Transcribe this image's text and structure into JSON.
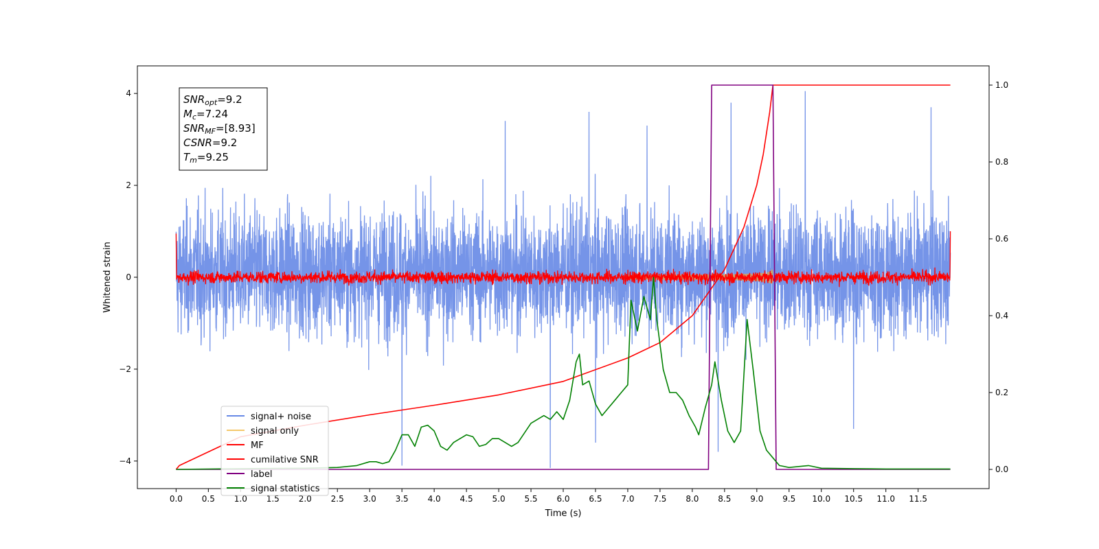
{
  "chart_data": {
    "type": "line",
    "xlabel": "Time (s)",
    "ylabel": "Whitened strain",
    "xlim": [
      -0.6,
      12.6
    ],
    "ylim": [
      -4.6,
      4.6
    ],
    "y2lim": [
      -0.05,
      1.05
    ],
    "x_ticks": [
      0.0,
      0.5,
      1.0,
      1.5,
      2.0,
      2.5,
      3.0,
      3.5,
      4.0,
      4.5,
      5.0,
      5.5,
      6.0,
      6.5,
      7.0,
      7.5,
      8.0,
      8.5,
      9.0,
      9.5,
      10.0,
      10.5,
      11.0,
      11.5
    ],
    "x_tick_labels": [
      "0.0",
      "0.5",
      "1.0",
      "1.5",
      "2.0",
      "2.5",
      "3.0",
      "3.5",
      "4.0",
      "4.5",
      "5.0",
      "5.5",
      "6.0",
      "6.5",
      "7.0",
      "7.5",
      "8.0",
      "8.5",
      "9.0",
      "9.5",
      "10.0",
      "10.5",
      "11.0",
      "11.5"
    ],
    "y_ticks": [
      -4,
      -2,
      0,
      2,
      4
    ],
    "y_tick_labels": [
      "−4",
      "−2",
      "0",
      "2",
      "4"
    ],
    "y2_ticks": [
      0.0,
      0.2,
      0.4,
      0.6,
      0.8,
      1.0
    ],
    "y2_tick_labels": [
      "0.0",
      "0.2",
      "0.4",
      "0.6",
      "0.8",
      "1.0"
    ],
    "legend_position": "lower-left",
    "legend": [
      {
        "label": "signal+ noise",
        "color": "#6688e6"
      },
      {
        "label": "signal only",
        "color": "#f5c86a"
      },
      {
        "label": "MF",
        "color": "#ff0000"
      },
      {
        "label": "cumilative SNR",
        "color": "#ff0000"
      },
      {
        "label": "label",
        "color": "#800080"
      },
      {
        "label": "signal statistics",
        "color": "#008000"
      }
    ],
    "annotation": {
      "lines": [
        {
          "base": "SNR",
          "sub": "opt",
          "value": "=9.2"
        },
        {
          "base": "M",
          "sub": "c",
          "value": "=7.24"
        },
        {
          "base": "SNR",
          "sub": "MF",
          "value": "=[8.93]"
        },
        {
          "base": "CSNR",
          "sub": "",
          "value": "=9.2"
        },
        {
          "base": "T",
          "sub": "m",
          "value": "=9.25"
        }
      ]
    },
    "series": [
      {
        "name": "signal+ noise",
        "axis": "left",
        "color": "#6688e6",
        "style": "dense noise band",
        "x_range": [
          0.0,
          12.0
        ],
        "typical_range": [
          -2.0,
          2.2
        ],
        "peaks_up": [
          {
            "x": 3.5,
            "y": 2.4
          },
          {
            "x": 5.1,
            "y": 3.4
          },
          {
            "x": 6.4,
            "y": 3.6
          },
          {
            "x": 7.3,
            "y": 3.3
          },
          {
            "x": 8.6,
            "y": 3.8
          },
          {
            "x": 9.75,
            "y": 4.05
          },
          {
            "x": 11.7,
            "y": 3.7
          }
        ],
        "peaks_down": [
          {
            "x": 3.5,
            "y": -4.1
          },
          {
            "x": 5.8,
            "y": -4.15
          },
          {
            "x": 6.5,
            "y": -3.6
          },
          {
            "x": 8.4,
            "y": -3.8
          },
          {
            "x": 10.5,
            "y": -3.3
          }
        ]
      },
      {
        "name": "signal only",
        "axis": "left",
        "color": "#c8a070",
        "style": "chirp envelope",
        "x_range": [
          7.0,
          9.25
        ],
        "amplitude_start": 0.05,
        "amplitude_end": 1.1
      },
      {
        "name": "MF",
        "axis": "left",
        "color": "#ff0000",
        "style": "noise band",
        "x_range": [
          0.0,
          12.0
        ],
        "typical_range": [
          -0.25,
          0.25
        ],
        "edge_values": [
          {
            "x": 0.0,
            "y": 0.95
          },
          {
            "x": 12.0,
            "y": 1.0
          }
        ]
      },
      {
        "name": "cumilative SNR",
        "axis": "right",
        "color": "#ff0000",
        "x": [
          0.0,
          0.05,
          1.0,
          2.0,
          3.0,
          4.0,
          5.0,
          6.0,
          7.0,
          7.5,
          8.0,
          8.5,
          8.8,
          9.0,
          9.1,
          9.2,
          9.25,
          12.0
        ],
        "y": [
          0.0,
          0.01,
          0.085,
          0.115,
          0.142,
          0.167,
          0.194,
          0.229,
          0.29,
          0.33,
          0.4,
          0.52,
          0.63,
          0.74,
          0.82,
          0.93,
          1.0,
          1.0
        ]
      },
      {
        "name": "label",
        "axis": "right",
        "color": "#800080",
        "x": [
          0.0,
          8.25,
          8.3,
          9.25,
          9.3,
          12.0
        ],
        "y": [
          0.0,
          0.0,
          1.0,
          1.0,
          0.0,
          0.0
        ]
      },
      {
        "name": "signal statistics",
        "axis": "right",
        "color": "#008000",
        "x": [
          0.0,
          1.0,
          2.0,
          2.5,
          2.8,
          3.0,
          3.1,
          3.2,
          3.3,
          3.4,
          3.5,
          3.6,
          3.7,
          3.8,
          3.9,
          4.0,
          4.1,
          4.2,
          4.3,
          4.4,
          4.5,
          4.6,
          4.7,
          4.8,
          4.9,
          5.0,
          5.1,
          5.2,
          5.3,
          5.4,
          5.5,
          5.6,
          5.7,
          5.8,
          5.9,
          6.0,
          6.1,
          6.2,
          6.25,
          6.3,
          6.4,
          6.5,
          6.6,
          6.7,
          6.8,
          6.9,
          7.0,
          7.05,
          7.15,
          7.25,
          7.35,
          7.4,
          7.45,
          7.55,
          7.65,
          7.75,
          7.85,
          7.95,
          8.05,
          8.1,
          8.2,
          8.3,
          8.35,
          8.45,
          8.55,
          8.65,
          8.75,
          8.85,
          8.95,
          9.05,
          9.15,
          9.25,
          9.35,
          9.5,
          9.8,
          10.0,
          10.5,
          11.0,
          12.0
        ],
        "y": [
          0.0,
          0.002,
          0.003,
          0.005,
          0.01,
          0.02,
          0.02,
          0.015,
          0.02,
          0.05,
          0.09,
          0.09,
          0.06,
          0.11,
          0.115,
          0.1,
          0.06,
          0.05,
          0.07,
          0.08,
          0.09,
          0.085,
          0.06,
          0.065,
          0.08,
          0.08,
          0.07,
          0.06,
          0.07,
          0.095,
          0.12,
          0.13,
          0.14,
          0.13,
          0.15,
          0.13,
          0.18,
          0.28,
          0.3,
          0.22,
          0.23,
          0.17,
          0.14,
          0.16,
          0.18,
          0.2,
          0.22,
          0.44,
          0.36,
          0.45,
          0.39,
          0.5,
          0.39,
          0.26,
          0.2,
          0.2,
          0.18,
          0.14,
          0.11,
          0.09,
          0.16,
          0.22,
          0.28,
          0.18,
          0.1,
          0.07,
          0.1,
          0.39,
          0.25,
          0.1,
          0.05,
          0.03,
          0.01,
          0.005,
          0.01,
          0.003,
          0.002,
          0.001,
          0.001
        ]
      }
    ]
  }
}
